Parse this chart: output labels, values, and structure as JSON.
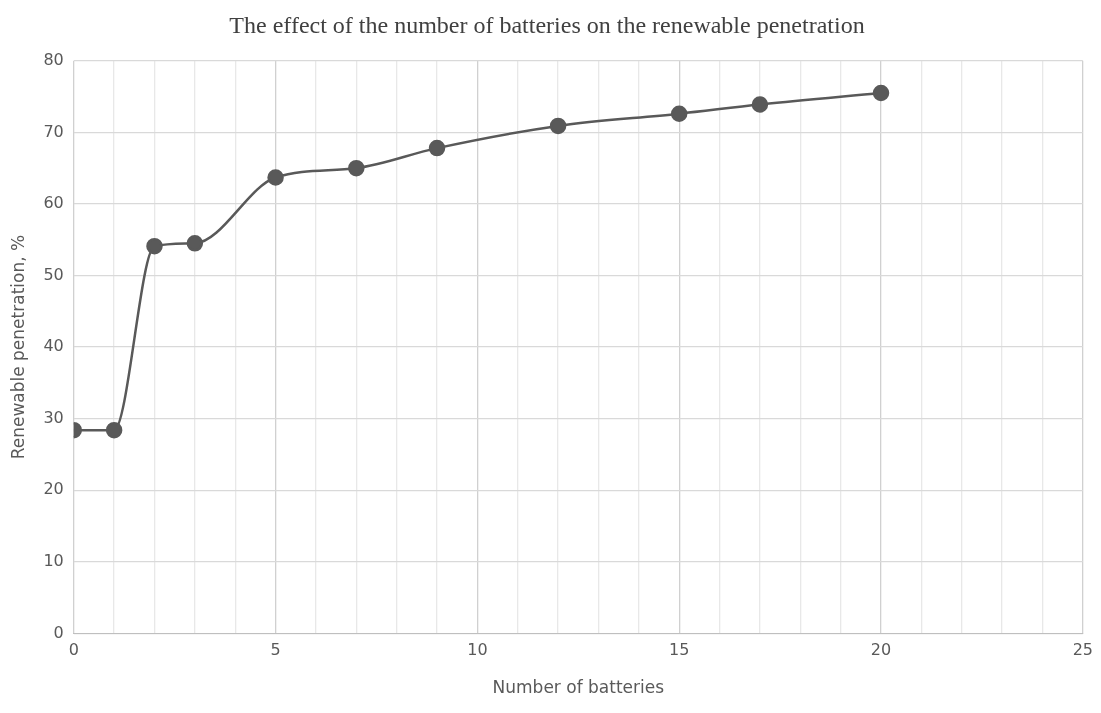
{
  "chart_data": {
    "type": "line",
    "title": "The effect of the number of batteries on the renewable penetration",
    "xlabel": "Number of batteries",
    "ylabel": "Renewable penetration, %",
    "x": [
      0,
      1,
      2,
      3,
      5,
      7,
      9,
      12,
      15,
      17,
      20
    ],
    "series": [
      {
        "color": "#595959",
        "values": [
          28.4,
          28.4,
          54.1,
          54.5,
          63.7,
          65.0,
          67.8,
          70.9,
          72.6,
          73.9,
          75.5
        ]
      }
    ],
    "xlim": [
      0,
      25
    ],
    "xticks": [
      0,
      {
        "value": 1,
        "label": null
      },
      {
        "value": 2,
        "label": null
      },
      {
        "value": 3,
        "label": null
      },
      {
        "value": 4,
        "label": null
      },
      5,
      {
        "value": 6,
        "label": null
      },
      {
        "value": 7,
        "label": null
      },
      {
        "value": 8,
        "label": null
      },
      {
        "value": 9,
        "label": null
      },
      10,
      {
        "value": 11,
        "label": null
      },
      {
        "value": 12,
        "label": null
      },
      {
        "value": 13,
        "label": null
      },
      {
        "value": 14,
        "label": null
      },
      15,
      {
        "value": 16,
        "label": null
      },
      {
        "value": 17,
        "label": null
      },
      {
        "value": 18,
        "label": null
      },
      {
        "value": 19,
        "label": null
      },
      20,
      {
        "value": 21,
        "label": null
      },
      {
        "value": 22,
        "label": null
      },
      {
        "value": 23,
        "label": null
      },
      {
        "value": 24,
        "label": null
      },
      25
    ],
    "ylim": [
      0,
      80
    ],
    "yticks": [
      0,
      10,
      20,
      30,
      40,
      50,
      60,
      70,
      80
    ],
    "grid": true,
    "legend": false,
    "marker": "circle",
    "line_style": "solid"
  }
}
